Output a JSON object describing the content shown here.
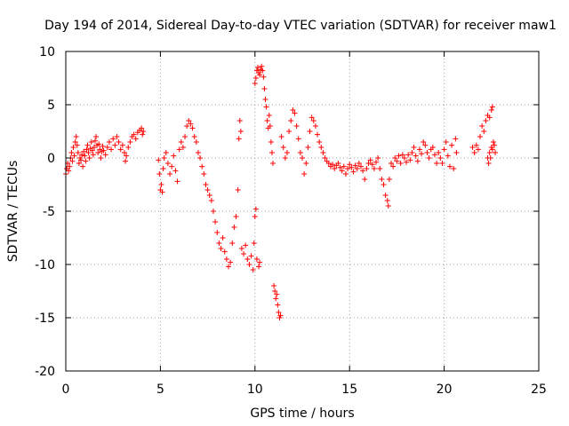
{
  "chart_data": {
    "type": "scatter",
    "title": "Day 194 of 2014, Sidereal Day-to-day VTEC variation (SDTVAR) for receiver maw1",
    "xlabel": "GPS time / hours",
    "ylabel": "SDTVAR / TECUs",
    "xlim": [
      0,
      25
    ],
    "ylim": [
      -20,
      10
    ],
    "xticks": [
      0,
      5,
      10,
      15,
      20,
      25
    ],
    "yticks": [
      -20,
      -15,
      -10,
      -5,
      0,
      5,
      10
    ],
    "xtick_labels": [
      "0",
      "5",
      "10",
      "15",
      "20",
      "25"
    ],
    "ytick_labels": [
      "-20",
      "-15",
      "-10",
      "-5",
      "0",
      "5",
      "10"
    ],
    "grid": true,
    "marker": "+",
    "series": [
      {
        "name": "maw1",
        "color": "#ff0000",
        "points": [
          [
            0.0,
            -1.5
          ],
          [
            0.05,
            -1.0
          ],
          [
            0.1,
            -0.5
          ],
          [
            0.15,
            -1.2
          ],
          [
            0.2,
            -0.8
          ],
          [
            0.25,
            0.0
          ],
          [
            0.3,
            0.5
          ],
          [
            0.35,
            -0.3
          ],
          [
            0.4,
            1.0
          ],
          [
            0.45,
            0.2
          ],
          [
            0.5,
            1.5
          ],
          [
            0.55,
            2.0
          ],
          [
            0.6,
            1.2
          ],
          [
            0.65,
            0.5
          ],
          [
            0.7,
            -0.5
          ],
          [
            0.75,
            0.0
          ],
          [
            0.8,
            -0.2
          ],
          [
            0.85,
            0.3
          ],
          [
            0.9,
            -0.8
          ],
          [
            0.95,
            0.6
          ],
          [
            1.0,
            0.2
          ],
          [
            1.05,
            -0.3
          ],
          [
            1.1,
            0.8
          ],
          [
            1.15,
            1.2
          ],
          [
            1.2,
            0.5
          ],
          [
            1.25,
            0.0
          ],
          [
            1.3,
            0.9
          ],
          [
            1.35,
            1.5
          ],
          [
            1.4,
            0.7
          ],
          [
            1.45,
            0.3
          ],
          [
            1.5,
            1.0
          ],
          [
            1.55,
            1.6
          ],
          [
            1.6,
            2.0
          ],
          [
            1.65,
            1.2
          ],
          [
            1.7,
            0.5
          ],
          [
            1.75,
            1.3
          ],
          [
            1.8,
            0.8
          ],
          [
            1.85,
            0.0
          ],
          [
            1.9,
            0.6
          ],
          [
            1.95,
            1.1
          ],
          [
            2.0,
            0.7
          ],
          [
            2.1,
            0.3
          ],
          [
            2.2,
            1.0
          ],
          [
            2.3,
            1.5
          ],
          [
            2.4,
            0.8
          ],
          [
            2.5,
            1.8
          ],
          [
            2.6,
            1.2
          ],
          [
            2.7,
            2.0
          ],
          [
            2.8,
            1.5
          ],
          [
            2.9,
            0.8
          ],
          [
            3.0,
            1.2
          ],
          [
            3.1,
            0.5
          ],
          [
            3.15,
            -0.3
          ],
          [
            3.2,
            0.2
          ],
          [
            3.3,
            1.0
          ],
          [
            3.4,
            1.5
          ],
          [
            3.5,
            2.0
          ],
          [
            3.6,
            2.2
          ],
          [
            3.7,
            1.8
          ],
          [
            3.8,
            2.4
          ],
          [
            3.9,
            2.6
          ],
          [
            4.0,
            2.8
          ],
          [
            4.05,
            2.2
          ],
          [
            4.1,
            2.5
          ],
          [
            4.9,
            -0.2
          ],
          [
            4.95,
            -1.5
          ],
          [
            5.0,
            -3.0
          ],
          [
            5.05,
            -2.5
          ],
          [
            5.1,
            -3.2
          ],
          [
            5.15,
            -1.0
          ],
          [
            5.2,
            0.0
          ],
          [
            5.3,
            0.5
          ],
          [
            5.4,
            -0.5
          ],
          [
            5.5,
            -1.5
          ],
          [
            5.6,
            -0.8
          ],
          [
            5.7,
            0.2
          ],
          [
            5.8,
            -1.2
          ],
          [
            5.9,
            -2.2
          ],
          [
            6.0,
            0.8
          ],
          [
            6.1,
            1.5
          ],
          [
            6.2,
            1.0
          ],
          [
            6.3,
            2.0
          ],
          [
            6.4,
            3.0
          ],
          [
            6.5,
            3.5
          ],
          [
            6.6,
            3.2
          ],
          [
            6.7,
            2.8
          ],
          [
            6.8,
            2.0
          ],
          [
            6.9,
            1.5
          ],
          [
            7.0,
            0.5
          ],
          [
            7.1,
            0.0
          ],
          [
            7.2,
            -0.8
          ],
          [
            7.3,
            -1.5
          ],
          [
            7.4,
            -2.5
          ],
          [
            7.5,
            -3.0
          ],
          [
            7.6,
            -3.5
          ],
          [
            7.7,
            -4.0
          ],
          [
            7.8,
            -5.0
          ],
          [
            7.9,
            -6.0
          ],
          [
            8.0,
            -7.0
          ],
          [
            8.1,
            -8.0
          ],
          [
            8.2,
            -8.5
          ],
          [
            8.3,
            -7.5
          ],
          [
            8.4,
            -8.8
          ],
          [
            8.5,
            -9.5
          ],
          [
            8.6,
            -10.2
          ],
          [
            8.7,
            -9.8
          ],
          [
            8.8,
            -8.0
          ],
          [
            8.9,
            -6.5
          ],
          [
            9.0,
            -5.5
          ],
          [
            9.1,
            -3.0
          ],
          [
            9.15,
            1.8
          ],
          [
            9.2,
            3.5
          ],
          [
            9.25,
            2.5
          ],
          [
            9.3,
            -8.5
          ],
          [
            9.4,
            -9.0
          ],
          [
            9.5,
            -8.2
          ],
          [
            9.6,
            -9.5
          ],
          [
            9.7,
            -10.0
          ],
          [
            9.8,
            -9.2
          ],
          [
            9.9,
            -10.5
          ],
          [
            9.95,
            -8.0
          ],
          [
            10.0,
            -5.5
          ],
          [
            10.05,
            -4.8
          ],
          [
            10.1,
            -9.5
          ],
          [
            10.2,
            -10.2
          ],
          [
            10.25,
            -9.8
          ],
          [
            10.0,
            7.0
          ],
          [
            10.05,
            7.5
          ],
          [
            10.1,
            8.2
          ],
          [
            10.15,
            8.5
          ],
          [
            10.2,
            8.0
          ],
          [
            10.25,
            7.8
          ],
          [
            10.3,
            8.3
          ],
          [
            10.35,
            8.6
          ],
          [
            10.4,
            8.2
          ],
          [
            10.45,
            7.6
          ],
          [
            10.5,
            6.5
          ],
          [
            10.55,
            5.5
          ],
          [
            10.6,
            4.8
          ],
          [
            10.65,
            3.5
          ],
          [
            10.7,
            2.8
          ],
          [
            10.75,
            4.0
          ],
          [
            10.8,
            3.0
          ],
          [
            10.85,
            1.5
          ],
          [
            10.9,
            0.5
          ],
          [
            10.95,
            -0.5
          ],
          [
            11.0,
            -12.0
          ],
          [
            11.05,
            -12.5
          ],
          [
            11.1,
            -13.2
          ],
          [
            11.15,
            -12.8
          ],
          [
            11.2,
            -13.8
          ],
          [
            11.25,
            -14.5
          ],
          [
            11.3,
            -15.0
          ],
          [
            11.35,
            -14.8
          ],
          [
            11.4,
            2.0
          ],
          [
            11.5,
            1.0
          ],
          [
            11.6,
            0.0
          ],
          [
            11.7,
            0.5
          ],
          [
            11.8,
            2.5
          ],
          [
            11.9,
            3.5
          ],
          [
            12.0,
            4.5
          ],
          [
            12.1,
            4.2
          ],
          [
            12.2,
            3.0
          ],
          [
            12.3,
            1.8
          ],
          [
            12.4,
            0.5
          ],
          [
            12.5,
            0.0
          ],
          [
            12.6,
            -1.5
          ],
          [
            12.7,
            -0.5
          ],
          [
            12.8,
            1.0
          ],
          [
            12.9,
            2.5
          ],
          [
            13.0,
            3.8
          ],
          [
            13.1,
            3.5
          ],
          [
            13.2,
            3.0
          ],
          [
            13.3,
            2.2
          ],
          [
            13.4,
            1.5
          ],
          [
            13.5,
            1.0
          ],
          [
            13.6,
            0.5
          ],
          [
            13.7,
            0.0
          ],
          [
            13.8,
            -0.3
          ],
          [
            13.9,
            -0.5
          ],
          [
            14.0,
            -0.8
          ],
          [
            14.1,
            -0.6
          ],
          [
            14.2,
            -1.0
          ],
          [
            14.3,
            -0.7
          ],
          [
            14.4,
            -0.5
          ],
          [
            14.5,
            -0.9
          ],
          [
            14.6,
            -1.2
          ],
          [
            14.7,
            -0.8
          ],
          [
            14.8,
            -1.5
          ],
          [
            14.9,
            -1.0
          ],
          [
            15.0,
            -0.6
          ],
          [
            15.1,
            -0.9
          ],
          [
            15.2,
            -1.3
          ],
          [
            15.3,
            -0.7
          ],
          [
            15.4,
            -1.0
          ],
          [
            15.5,
            -0.5
          ],
          [
            15.6,
            -0.8
          ],
          [
            15.7,
            -1.2
          ],
          [
            15.8,
            -2.0
          ],
          [
            15.9,
            -1.0
          ],
          [
            16.0,
            -0.5
          ],
          [
            16.1,
            -0.2
          ],
          [
            16.2,
            -0.6
          ],
          [
            16.3,
            -1.0
          ],
          [
            16.4,
            -0.4
          ],
          [
            16.5,
            0.0
          ],
          [
            16.6,
            -1.0
          ],
          [
            16.7,
            -2.0
          ],
          [
            16.8,
            -2.5
          ],
          [
            16.9,
            -3.5
          ],
          [
            17.0,
            -4.0
          ],
          [
            17.05,
            -4.5
          ],
          [
            17.1,
            -2.0
          ],
          [
            17.2,
            -0.5
          ],
          [
            17.3,
            -0.8
          ],
          [
            17.4,
            0.0
          ],
          [
            17.5,
            -0.3
          ],
          [
            17.6,
            0.2
          ],
          [
            17.7,
            -0.5
          ],
          [
            17.8,
            0.3
          ],
          [
            17.9,
            0.0
          ],
          [
            18.0,
            -0.4
          ],
          [
            18.1,
            0.3
          ],
          [
            18.2,
            -0.2
          ],
          [
            18.3,
            0.5
          ],
          [
            18.4,
            1.0
          ],
          [
            18.5,
            0.2
          ],
          [
            18.6,
            -0.3
          ],
          [
            18.7,
            0.8
          ],
          [
            18.8,
            0.4
          ],
          [
            18.9,
            1.5
          ],
          [
            19.0,
            1.2
          ],
          [
            19.1,
            0.5
          ],
          [
            19.2,
            0.0
          ],
          [
            19.3,
            0.8
          ],
          [
            19.4,
            1.0
          ],
          [
            19.5,
            0.3
          ],
          [
            19.6,
            -0.5
          ],
          [
            19.7,
            0.5
          ],
          [
            19.8,
            0.0
          ],
          [
            19.9,
            -0.5
          ],
          [
            20.0,
            0.8
          ],
          [
            20.1,
            1.5
          ],
          [
            20.2,
            0.2
          ],
          [
            20.3,
            -0.8
          ],
          [
            20.4,
            1.2
          ],
          [
            20.5,
            -1.0
          ],
          [
            20.6,
            1.8
          ],
          [
            20.65,
            0.5
          ],
          [
            21.5,
            1.0
          ],
          [
            21.6,
            0.5
          ],
          [
            21.7,
            1.2
          ],
          [
            21.8,
            0.8
          ],
          [
            21.9,
            2.0
          ],
          [
            22.0,
            3.0
          ],
          [
            22.1,
            2.5
          ],
          [
            22.2,
            3.5
          ],
          [
            22.3,
            4.0
          ],
          [
            22.4,
            3.8
          ],
          [
            22.5,
            4.5
          ],
          [
            22.55,
            4.8
          ],
          [
            22.3,
            0.0
          ],
          [
            22.35,
            -0.5
          ],
          [
            22.4,
            0.5
          ],
          [
            22.45,
            0.0
          ],
          [
            22.5,
            1.0
          ],
          [
            22.55,
            0.8
          ],
          [
            22.6,
            1.5
          ],
          [
            22.65,
            1.2
          ],
          [
            22.7,
            0.5
          ]
        ]
      }
    ]
  }
}
